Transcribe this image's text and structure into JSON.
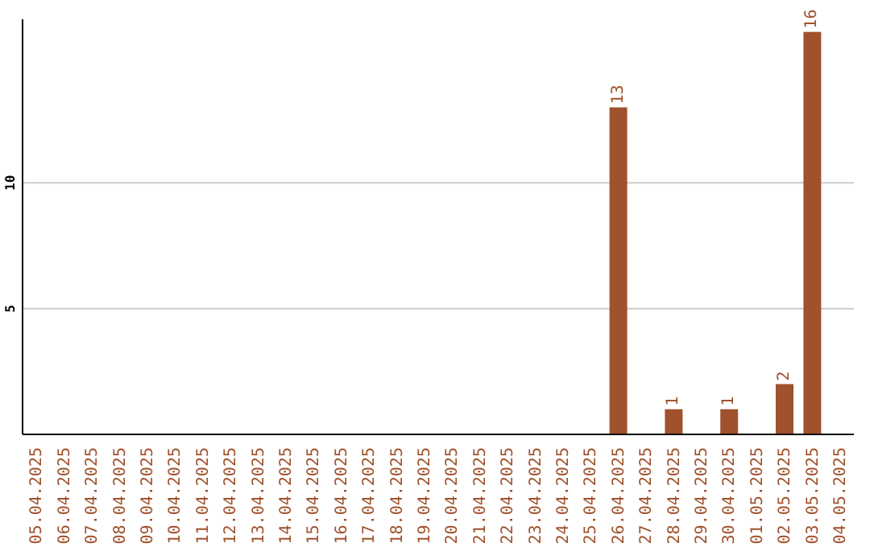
{
  "chart_data": {
    "type": "bar",
    "categories": [
      "05.04.2025",
      "06.04.2025",
      "07.04.2025",
      "08.04.2025",
      "09.04.2025",
      "10.04.2025",
      "11.04.2025",
      "12.04.2025",
      "13.04.2025",
      "14.04.2025",
      "15.04.2025",
      "16.04.2025",
      "17.04.2025",
      "18.04.2025",
      "19.04.2025",
      "20.04.2025",
      "21.04.2025",
      "22.04.2025",
      "23.04.2025",
      "24.04.2025",
      "25.04.2025",
      "26.04.2025",
      "27.04.2025",
      "28.04.2025",
      "29.04.2025",
      "30.04.2025",
      "01.05.2025",
      "02.05.2025",
      "03.05.2025",
      "04.05.2025"
    ],
    "values": [
      0,
      0,
      0,
      0,
      0,
      0,
      0,
      0,
      0,
      0,
      0,
      0,
      0,
      0,
      0,
      0,
      0,
      0,
      0,
      0,
      0,
      13,
      0,
      1,
      0,
      1,
      0,
      2,
      16,
      0
    ],
    "value_labels": [
      null,
      null,
      null,
      null,
      null,
      null,
      null,
      null,
      null,
      null,
      null,
      null,
      null,
      null,
      null,
      null,
      null,
      null,
      null,
      null,
      null,
      "13",
      null,
      "1",
      null,
      "1",
      null,
      "2",
      "16",
      null
    ],
    "color": "#a0522d",
    "ylim": [
      0,
      16.5
    ],
    "yticks": [
      5,
      10
    ],
    "grid": "y"
  }
}
